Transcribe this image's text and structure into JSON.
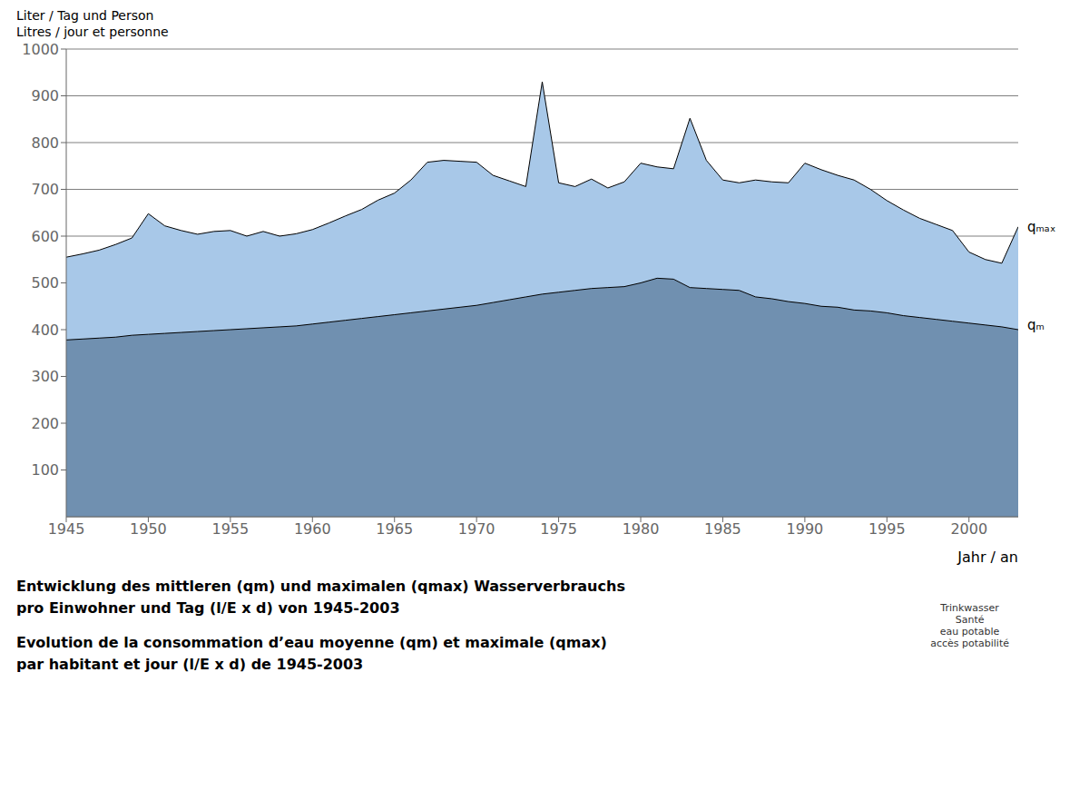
{
  "chart_data": {
    "type": "area",
    "ylabel": [
      "Liter / Tag und Person",
      "Litres / jour et personne"
    ],
    "xlabel": "Jahr / an",
    "x": [
      1945,
      1946,
      1947,
      1948,
      1949,
      1950,
      1951,
      1952,
      1953,
      1954,
      1955,
      1956,
      1957,
      1958,
      1959,
      1960,
      1961,
      1962,
      1963,
      1964,
      1965,
      1966,
      1967,
      1968,
      1969,
      1970,
      1971,
      1972,
      1973,
      1974,
      1975,
      1976,
      1977,
      1978,
      1979,
      1980,
      1981,
      1982,
      1983,
      1984,
      1985,
      1986,
      1987,
      1988,
      1989,
      1990,
      1991,
      1992,
      1993,
      1994,
      1995,
      1996,
      1997,
      1998,
      1999,
      2000,
      2001,
      2002,
      2003
    ],
    "series": [
      {
        "name": "qₘₐₓ",
        "color": "#a8c8e8",
        "values": [
          555,
          562,
          570,
          582,
          596,
          648,
          622,
          612,
          604,
          610,
          612,
          600,
          610,
          600,
          605,
          614,
          628,
          643,
          657,
          677,
          692,
          720,
          758,
          762,
          760,
          758,
          730,
          718,
          706,
          930,
          714,
          706,
          722,
          703,
          716,
          756,
          748,
          744,
          852,
          762,
          720,
          714,
          720,
          716,
          714,
          756,
          742,
          730,
          720,
          700,
          676,
          656,
          638,
          625,
          612,
          566,
          550,
          542,
          620
        ]
      },
      {
        "name": "qₘ",
        "color": "#7090b0",
        "values": [
          378,
          380,
          382,
          384,
          388,
          390,
          392,
          394,
          396,
          398,
          400,
          402,
          404,
          406,
          408,
          412,
          416,
          420,
          424,
          428,
          432,
          436,
          440,
          444,
          448,
          452,
          458,
          464,
          470,
          476,
          480,
          484,
          488,
          490,
          492,
          500,
          510,
          508,
          490,
          488,
          486,
          484,
          470,
          466,
          460,
          456,
          450,
          448,
          442,
          440,
          436,
          430,
          426,
          422,
          418,
          414,
          410,
          406,
          400
        ]
      }
    ],
    "xlim": [
      1945,
      2003
    ],
    "ylim": [
      0,
      1000
    ],
    "xticks": [
      1945,
      1950,
      1955,
      1960,
      1965,
      1970,
      1975,
      1980,
      1985,
      1990,
      1995,
      2000
    ],
    "yticks": [
      100,
      200,
      300,
      400,
      500,
      600,
      700,
      800,
      900,
      1000
    ],
    "grid": "y",
    "legend": false,
    "annotations": [
      {
        "text": "qₘₐₓ",
        "x": 2003,
        "y": 620
      },
      {
        "text": "qₘ",
        "x": 2003,
        "y": 410
      }
    ],
    "caption": [
      "Entwicklung des mittleren (qm) und maximalen (qmax) Wasserverbrauchs",
      "pro Einwohner und Tag (l/E x d) von 1945-2003",
      "Evolution de la consommation d’eau moyenne  (qm) et maximale (qmax)",
      "par habitant et jour (l/E x d) de 1945-2003"
    ],
    "logo": "Trinkwasser\nSanté\neau potable\naccès potabilité"
  }
}
